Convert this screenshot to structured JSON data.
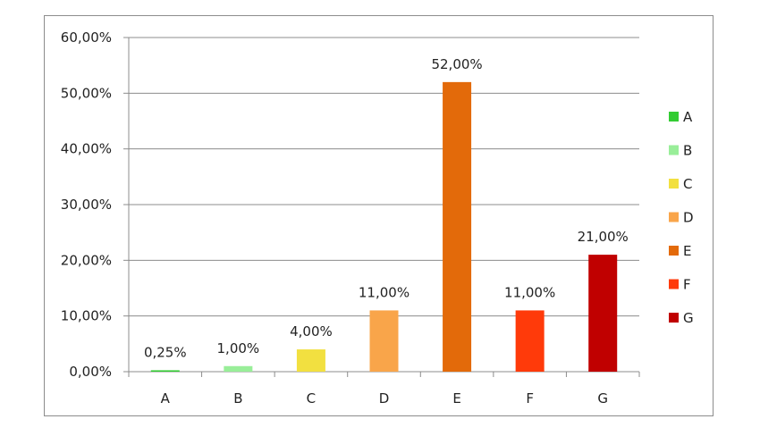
{
  "chart_data": {
    "type": "bar",
    "categories": [
      "A",
      "B",
      "C",
      "D",
      "E",
      "F",
      "G"
    ],
    "values": [
      0.25,
      1.0,
      4.0,
      11.0,
      52.0,
      11.0,
      21.0
    ],
    "data_labels": [
      "0,25%",
      "1,00%",
      "4,00%",
      "11,00%",
      "52,00%",
      "11,00%",
      "21,00%"
    ],
    "colors": [
      "#33cc33",
      "#99ee99",
      "#f2e040",
      "#f9a54a",
      "#e36a0a",
      "#ff3a0a",
      "#c00000"
    ],
    "ylim": [
      0,
      60
    ],
    "yticks": [
      0,
      10,
      20,
      30,
      40,
      50,
      60
    ],
    "ytick_labels": [
      "0,00%",
      "10,00%",
      "20,00%",
      "30,00%",
      "40,00%",
      "50,00%",
      "60,00%"
    ],
    "grid": true,
    "legend": {
      "position": "right",
      "entries": [
        "A",
        "B",
        "C",
        "D",
        "E",
        "F",
        "G"
      ]
    },
    "title": "",
    "xlabel": "",
    "ylabel": ""
  }
}
